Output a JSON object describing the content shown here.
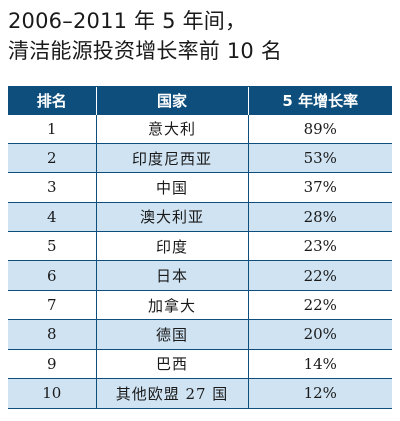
{
  "title": {
    "line1": "2006–2011 年 5 年间，",
    "line2": "清洁能源投资增长率前 10 名"
  },
  "table": {
    "headers": [
      "排名",
      "国家",
      "5 年增长率"
    ],
    "rows": [
      {
        "rank": "1",
        "country": "意大利",
        "growth": "89%"
      },
      {
        "rank": "2",
        "country": "印度尼西亚",
        "growth": "53%"
      },
      {
        "rank": "3",
        "country": "中国",
        "growth": "37%"
      },
      {
        "rank": "4",
        "country": "澳大利亚",
        "growth": "28%"
      },
      {
        "rank": "5",
        "country": "印度",
        "growth": "23%"
      },
      {
        "rank": "6",
        "country": "日本",
        "growth": "22%"
      },
      {
        "rank": "7",
        "country": "加拿大",
        "growth": "22%"
      },
      {
        "rank": "8",
        "country": "德国",
        "growth": "20%"
      },
      {
        "rank": "9",
        "country": "巴西",
        "growth": "14%"
      },
      {
        "rank": "10",
        "country": "其他欧盟 27 国",
        "growth": "12%"
      }
    ]
  },
  "colors": {
    "header_bg": "#0e4e7c",
    "alt_row_bg": "#cfe3f3",
    "row_bg": "#ffffff"
  }
}
